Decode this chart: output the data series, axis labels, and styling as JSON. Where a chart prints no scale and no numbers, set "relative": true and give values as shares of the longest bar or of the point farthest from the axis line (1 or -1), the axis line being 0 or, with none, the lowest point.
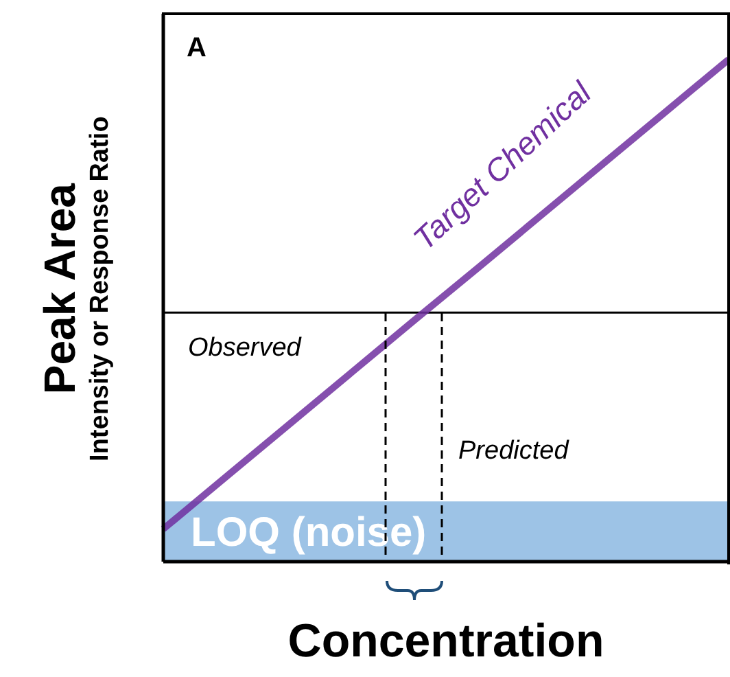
{
  "chart_data": {
    "type": "line",
    "title": "A",
    "xlabel": "Concentration",
    "ylabel": "Peak Area\nIntensity or Response Ratio",
    "relative": true,
    "categories": [
      null,
      null,
      null,
      null,
      null,
      null,
      null,
      null,
      null,
      null
    ],
    "series": [
      {
        "name": "Target Chemical",
        "color": "#7030a0",
        "values": [
          0.065,
          0.169,
          0.273,
          0.377,
          0.481,
          0.584,
          0.688,
          0.792,
          0.896,
          1
        ]
      }
    ],
    "ref_lines": [
      {
        "axis": "y",
        "value": 0.496,
        "label": "Observed",
        "color": "#000000"
      }
    ],
    "bands": [
      {
        "axis": "y",
        "from": 0,
        "to": 0.12,
        "label": "LOQ (noise)",
        "color": "#9dc3e6"
      }
    ],
    "annotations": [
      "Predicted"
    ],
    "marker": "none",
    "legend": false
  }
}
